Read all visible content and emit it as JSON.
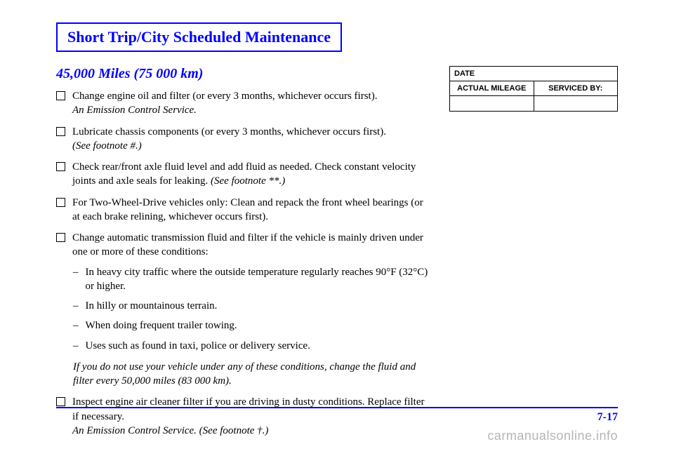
{
  "header": {
    "title": "Short Trip/City Scheduled Maintenance"
  },
  "mileage": {
    "heading": "45,000 Miles (75 000 km)"
  },
  "items": {
    "i0": {
      "line1": "Change engine oil and filter (or every 3 months, whichever occurs first).",
      "line2": "An Emission Control Service."
    },
    "i1": {
      "line1": "Lubricate chassis components (or every 3 months, whichever occurs first).",
      "line2": "(See footnote #.)"
    },
    "i2": {
      "line1": "Check rear/front axle fluid level and add fluid as needed. Check constant velocity joints and axle seals for leaking. ",
      "line2": "(See footnote **.)"
    },
    "i3": {
      "line1": "For Two-Wheel-Drive vehicles only: Clean and repack the front wheel bearings (or at each brake relining, whichever occurs first)."
    },
    "i4": {
      "line1": "Change automatic transmission fluid and filter if the vehicle is mainly driven under one or more of these conditions:"
    },
    "i5": {
      "line1": "Inspect engine air cleaner filter if you are driving in dusty conditions. Replace filter if necessary.",
      "line2": "An Emission Control Service. (See footnote †.)"
    }
  },
  "subitems": {
    "s0": "In heavy city traffic where the outside temperature regularly reaches 90°F (32°C) or higher.",
    "s1": "In hilly or mountainous terrain.",
    "s2": "When doing frequent trailer towing.",
    "s3": "Uses such as found in taxi, police or delivery service."
  },
  "subnote": "If you do not use your vehicle under any of these conditions, change the fluid and filter every 50,000 miles (83 000 km).",
  "record": {
    "date": "DATE",
    "mileage": "ACTUAL MILEAGE",
    "serviced": "SERVICED BY:"
  },
  "footer": {
    "page": "7-17"
  },
  "watermark": "carmanualsonline.info",
  "dash": "–"
}
